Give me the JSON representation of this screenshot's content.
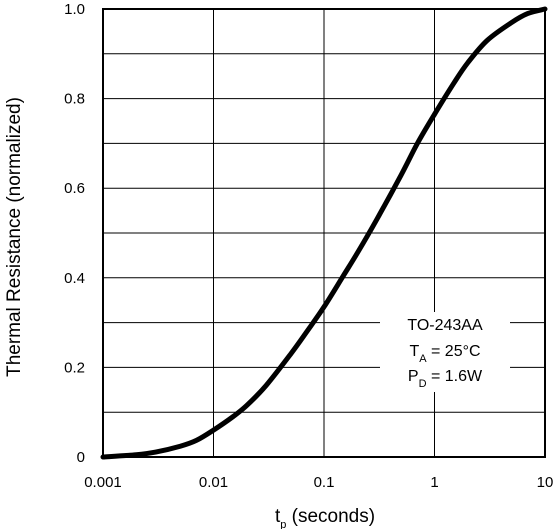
{
  "chart_data": {
    "type": "line",
    "xscale": "log",
    "xlim": [
      0.001,
      10
    ],
    "ylim": [
      0,
      1.0
    ],
    "grid": true,
    "xlabel_main": "t",
    "xlabel_sub": "p",
    "xlabel_rest": " (seconds)",
    "ylabel": "Thermal Resistance (normalized)",
    "x_ticks": [
      {
        "value": 0.001,
        "label": "0.001"
      },
      {
        "value": 0.01,
        "label": "0.01"
      },
      {
        "value": 0.1,
        "label": "0.1"
      },
      {
        "value": 1,
        "label": "1"
      },
      {
        "value": 10,
        "label": "10"
      }
    ],
    "y_ticks": [
      {
        "value": 0,
        "label": "0"
      },
      {
        "value": 0.2,
        "label": "0.2"
      },
      {
        "value": 0.4,
        "label": "0.4"
      },
      {
        "value": 0.6,
        "label": "0.6"
      },
      {
        "value": 0.8,
        "label": "0.8"
      },
      {
        "value": 1.0,
        "label": "1.0"
      }
    ],
    "y_minor_grid": [
      0.1,
      0.3,
      0.5,
      0.7,
      0.9
    ],
    "series": [
      {
        "x": [
          0.001,
          0.002,
          0.003,
          0.005,
          0.007,
          0.01,
          0.015,
          0.02,
          0.03,
          0.05,
          0.07,
          0.1,
          0.15,
          0.2,
          0.3,
          0.5,
          0.7,
          1,
          1.5,
          2,
          3,
          5,
          7,
          10
        ],
        "y": [
          0.0,
          0.005,
          0.011,
          0.024,
          0.037,
          0.06,
          0.09,
          0.115,
          0.16,
          0.23,
          0.28,
          0.335,
          0.405,
          0.455,
          0.53,
          0.63,
          0.7,
          0.765,
          0.835,
          0.88,
          0.93,
          0.97,
          0.99,
          1.0
        ]
      }
    ],
    "annotation": {
      "line1": "TO-243AA",
      "line2_main": "T",
      "line2_sub": "A",
      "line2_rest": " = 25°C",
      "line3_main": "P",
      "line3_sub": "D",
      "line3_rest": " = 1.6W"
    }
  },
  "colors": {
    "line": "#000000",
    "grid": "#000000",
    "background": "#ffffff"
  }
}
